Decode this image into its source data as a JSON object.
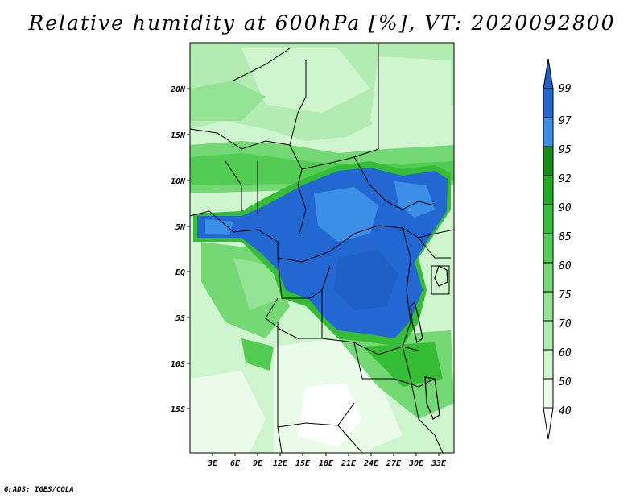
{
  "title": "Relative humidity at 600hPa [%], VT: 2020092800",
  "credit": "GrADS: IGES/COLA",
  "map": {
    "lat_ticks": [
      "20N",
      "15N",
      "10N",
      "5N",
      "EQ",
      "5S",
      "10S",
      "15S"
    ],
    "lon_ticks": [
      "3E",
      "6E",
      "9E",
      "12E",
      "15E",
      "18E",
      "21E",
      "24E",
      "27E",
      "30E",
      "33E"
    ],
    "lat_range": [
      -20,
      25
    ],
    "lon_range": [
      0,
      35
    ]
  },
  "colorbar": {
    "unit": "%",
    "labels": [
      "40",
      "50",
      "60",
      "70",
      "75",
      "80",
      "85",
      "90",
      "92",
      "95",
      "97",
      "99"
    ],
    "colors": {
      "below_40": "#ffffff",
      "40_50": "#eafbea",
      "50_60": "#cff5cf",
      "60_70": "#b2ecb2",
      "70_75": "#94e294",
      "75_80": "#74d874",
      "80_85": "#52cc52",
      "85_90": "#36bd36",
      "90_92": "#20ab20",
      "92_95": "#128f12",
      "95_97": "#3c8fe6",
      "97_99": "#2367d2",
      "above_99": "#1e5fc8"
    }
  }
}
